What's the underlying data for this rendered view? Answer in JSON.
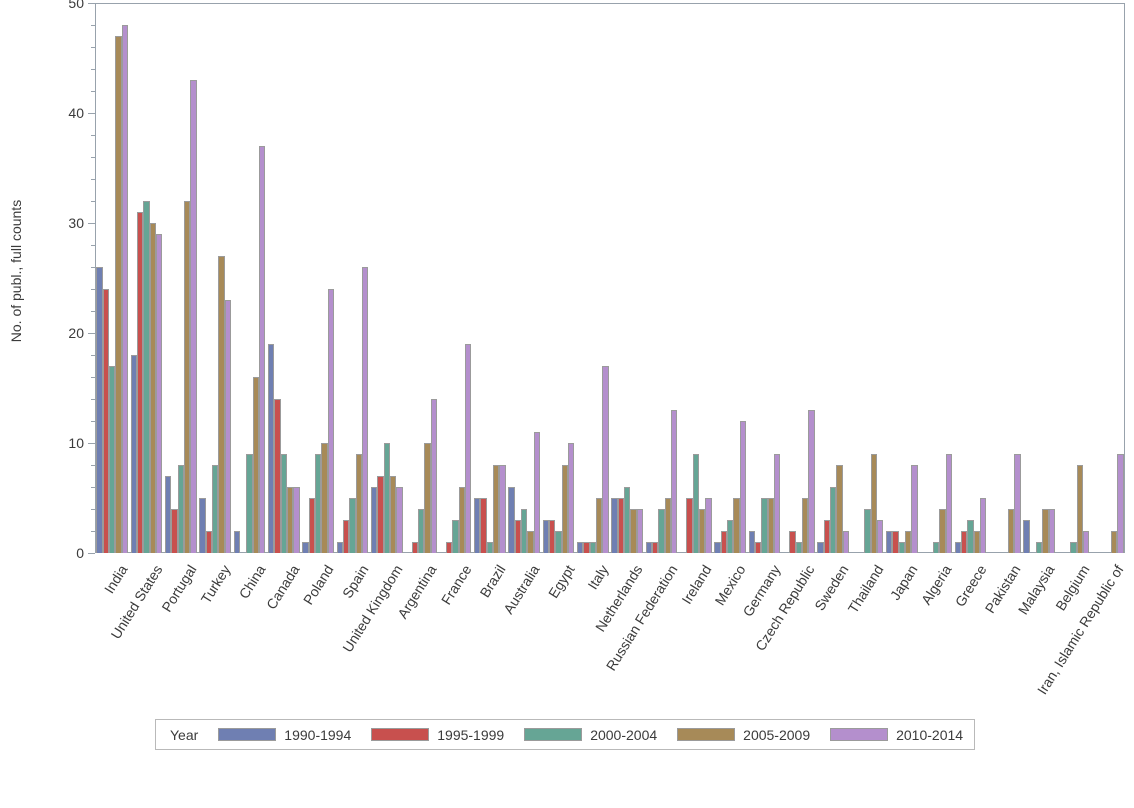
{
  "chart_data": {
    "type": "bar",
    "title": "",
    "xlabel": "",
    "ylabel": "No. of publ., full counts",
    "ylim": [
      0,
      50
    ],
    "ytick_major": [
      0,
      10,
      20,
      30,
      40,
      50
    ],
    "ytick_minor_step": 2,
    "grid": "off",
    "legend_position": "bottom",
    "legend_title": "Year",
    "categories": [
      "India",
      "United States",
      "Portugal",
      "Turkey",
      "China",
      "Canada",
      "Poland",
      "Spain",
      "United Kingdom",
      "Argentina",
      "France",
      "Brazil",
      "Australia",
      "Egypt",
      "Italy",
      "Netherlands",
      "Russian Federation",
      "Ireland",
      "Mexico",
      "Germany",
      "Czech Republic",
      "Sweden",
      "Thailand",
      "Japan",
      "Algeria",
      "Greece",
      "Pakistan",
      "Malaysia",
      "Belgium",
      "Iran, Islamic Republic of"
    ],
    "series": [
      {
        "name": "1990-1994",
        "color": "#6f7fb2",
        "values": [
          26,
          18,
          7,
          5,
          2,
          19,
          1,
          1,
          6,
          0,
          0,
          5,
          6,
          3,
          1,
          5,
          1,
          0,
          1,
          2,
          0,
          1,
          0,
          2,
          0,
          1,
          0,
          3,
          0,
          0
        ]
      },
      {
        "name": "1995-1999",
        "color": "#c8504e",
        "values": [
          24,
          31,
          4,
          2,
          0,
          14,
          5,
          3,
          7,
          1,
          1,
          5,
          3,
          3,
          1,
          5,
          1,
          5,
          2,
          1,
          2,
          3,
          0,
          2,
          0,
          2,
          0,
          0,
          0,
          0
        ]
      },
      {
        "name": "2000-2004",
        "color": "#66a595",
        "values": [
          17,
          32,
          8,
          8,
          9,
          9,
          9,
          5,
          10,
          4,
          3,
          1,
          4,
          2,
          1,
          6,
          4,
          9,
          3,
          5,
          1,
          6,
          4,
          1,
          1,
          3,
          0,
          1,
          1,
          0
        ]
      },
      {
        "name": "2005-2009",
        "color": "#a78a58",
        "values": [
          47,
          30,
          32,
          27,
          16,
          6,
          10,
          9,
          7,
          10,
          6,
          8,
          2,
          8,
          5,
          4,
          5,
          4,
          5,
          5,
          5,
          8,
          9,
          2,
          4,
          2,
          4,
          4,
          8,
          2
        ]
      },
      {
        "name": "2010-2014",
        "color": "#b48fcd",
        "values": [
          48,
          29,
          43,
          23,
          37,
          6,
          24,
          26,
          6,
          14,
          19,
          8,
          11,
          10,
          17,
          4,
          13,
          5,
          12,
          9,
          13,
          2,
          3,
          8,
          9,
          5,
          9,
          4,
          2,
          9
        ]
      }
    ],
    "axis_color": "#98a2ac",
    "bar_border_color": "#9b9b9b"
  }
}
